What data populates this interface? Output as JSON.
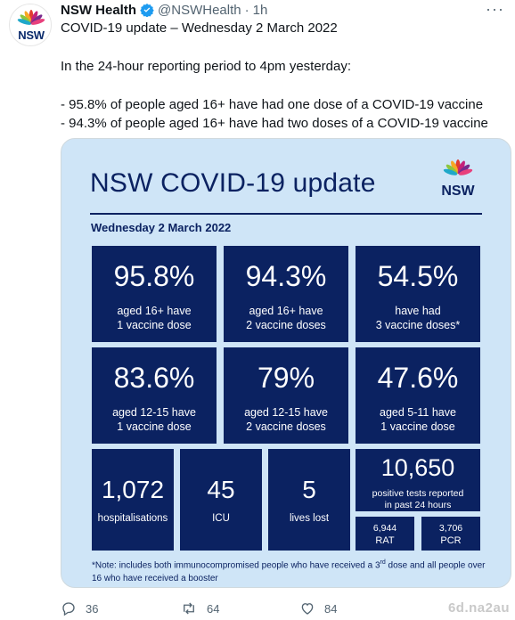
{
  "account": {
    "name": "NSW Health",
    "handle": "@NSWHealth",
    "separator": "·",
    "time": "1h",
    "avatar_text": "NSW"
  },
  "tweet": {
    "line1": "COVID-19 update – Wednesday 2 March 2022",
    "line2": "In the 24-hour reporting period to 4pm yesterday:",
    "line3": "- 95.8% of people aged 16+ have had one dose of a COVID-19 vaccine",
    "line4": "- 94.3% of people aged 16+ have had two doses of a COVID-19 vaccine"
  },
  "card": {
    "title": "NSW COVID-19 update",
    "logo_text": "NSW",
    "date": "Wednesday 2 March 2022",
    "tiles": [
      {
        "value": "95.8%",
        "line1": "aged 16+ have",
        "line2": "1 vaccine dose"
      },
      {
        "value": "94.3%",
        "line1": "aged 16+ have",
        "line2": "2 vaccine doses"
      },
      {
        "value": "54.5%",
        "line1": "have had",
        "line2": "3 vaccine doses*"
      },
      {
        "value": "83.6%",
        "line1": "aged 12-15 have",
        "line2": "1 vaccine dose"
      },
      {
        "value": "79%",
        "line1": "aged 12-15 have",
        "line2": "2 vaccine doses"
      },
      {
        "value": "47.6%",
        "line1": "aged 5-11 have",
        "line2": "1 vaccine dose"
      }
    ],
    "hospitalisations": {
      "value": "1,072",
      "label": "hospitalisations"
    },
    "icu": {
      "value": "45",
      "label": "ICU"
    },
    "lives_lost": {
      "value": "5",
      "label": "lives lost"
    },
    "positive": {
      "value": "10,650",
      "line1": "positive tests reported",
      "line2": "in past 24 hours"
    },
    "rat": {
      "value": "6,944",
      "label": "RAT"
    },
    "pcr": {
      "value": "3,706",
      "label": "PCR"
    },
    "note_before": "*Note: includes both immunocompromised people who have received a 3",
    "note_sup": "rd",
    "note_after": " dose and all people over 16 who have received a booster"
  },
  "actions": {
    "replies": "36",
    "retweets": "64",
    "likes": "84"
  },
  "watermark": "6d.na2au",
  "colors": {
    "navy": "#0b2261",
    "card_bg": "#cfe5f7",
    "verified": "#1d9bf0",
    "muted": "#536471"
  },
  "icons": [
    "verified-badge-icon",
    "more-icon",
    "waratah-logo-icon",
    "reply-icon",
    "retweet-icon",
    "like-icon"
  ]
}
